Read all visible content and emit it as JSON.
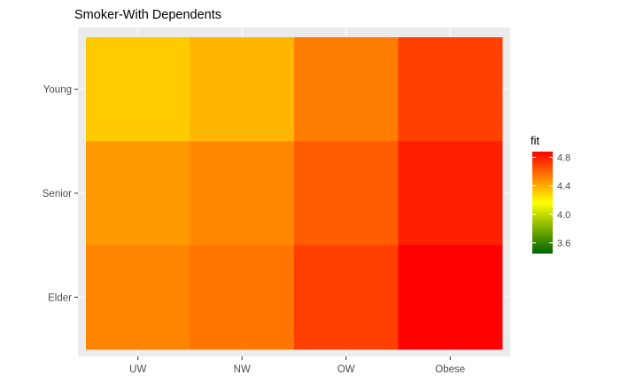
{
  "chart_data": {
    "type": "heatmap",
    "title": "Smoker-With Dependents",
    "xlabel": "",
    "ylabel": "",
    "x_categories": [
      "UW",
      "NW",
      "OW",
      "Obese"
    ],
    "y_categories": [
      "Elder",
      "Senior",
      "Young"
    ],
    "values": [
      {
        "y": "Young",
        "cells": [
          4.31,
          4.37,
          4.53,
          4.7
        ]
      },
      {
        "y": "Senior",
        "cells": [
          4.45,
          4.5,
          4.62,
          4.79
        ]
      },
      {
        "y": "Elder",
        "cells": [
          4.51,
          4.55,
          4.7,
          4.88
        ]
      }
    ],
    "legend": {
      "title": "fit",
      "range": [
        3.45,
        4.88
      ],
      "ticks": [
        "3.6",
        "4.0",
        "4.4",
        "4.8"
      ],
      "tick_values": [
        3.6,
        4.0,
        4.4,
        4.8
      ],
      "colors": [
        "#006400",
        "#ffff00",
        "#ff0000"
      ],
      "placement": "right"
    },
    "grid": true,
    "panel_background": "#ebebeb"
  }
}
